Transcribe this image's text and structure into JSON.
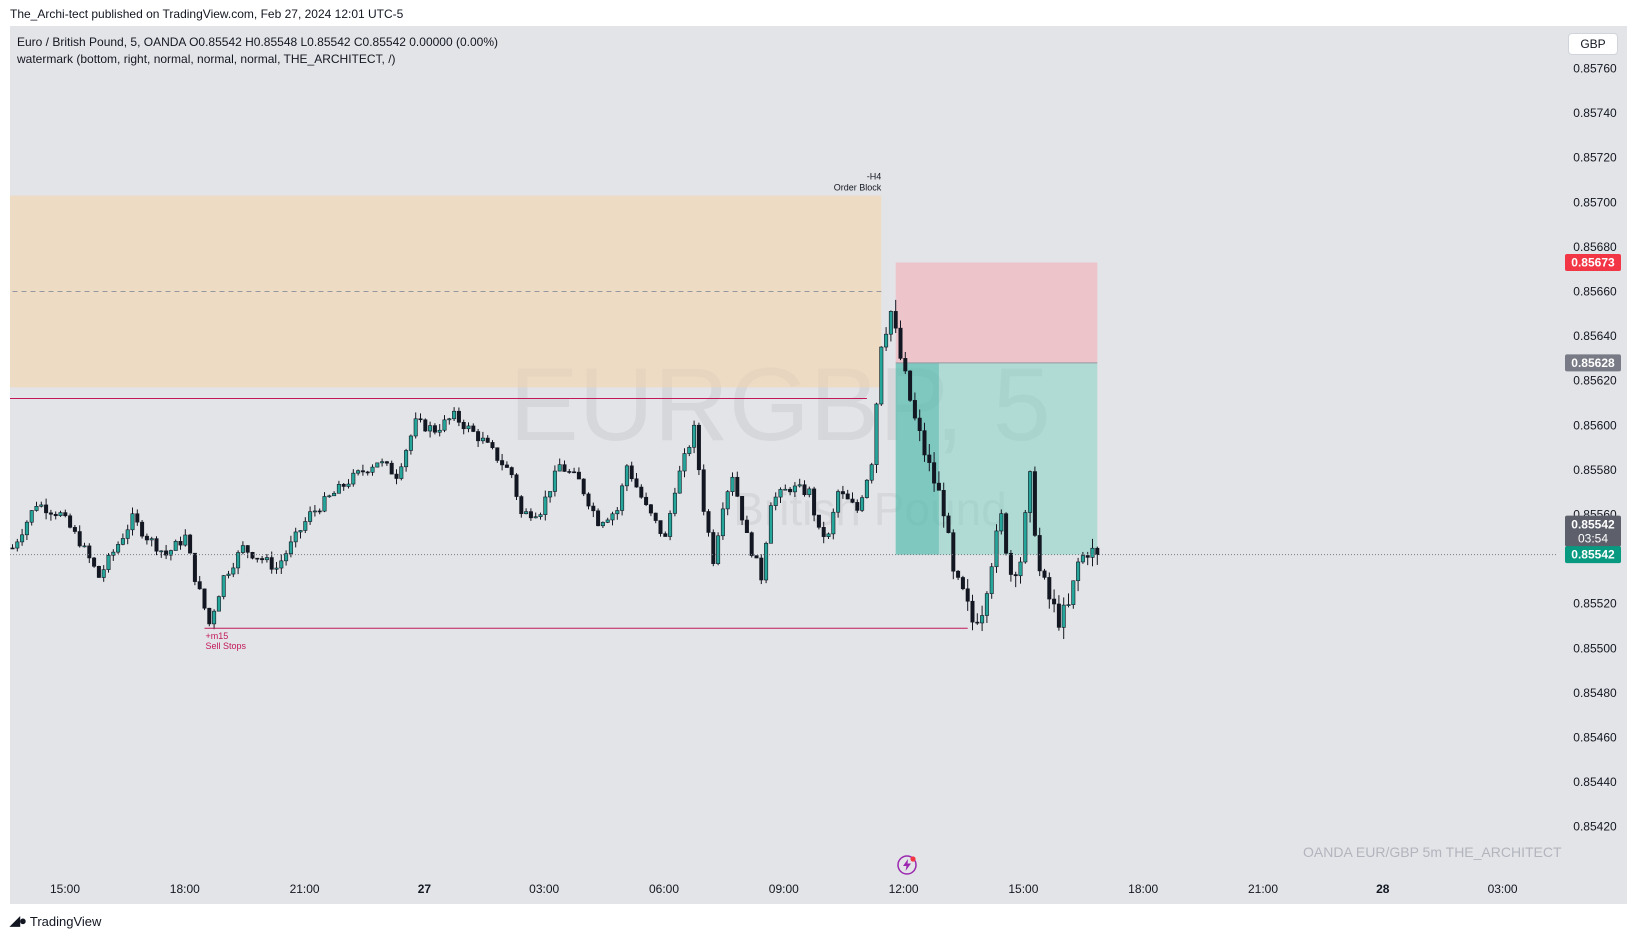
{
  "header": {
    "published": "The_Archi-tect published on TradingView.com, Feb 27, 2024 12:01 UTC-5"
  },
  "legend": {
    "line1": "Euro / British Pound, 5, OANDA  O0.85542  H0.85548  L0.85542  C0.85542  0.00000 (0.00%)",
    "line2": "watermark (bottom, right, normal, normal, normal, THE_ARCHITECT, /)"
  },
  "currency_button": "GBP",
  "bg_watermark": {
    "symbol": "EURGBP, 5",
    "name": "British Pound"
  },
  "corner_watermark": "OANDA   EUR/GBP 5m   THE_ARCHITECT",
  "footer": {
    "brand": "TradingView"
  },
  "colors": {
    "up": "#26a69a",
    "down": "#131722",
    "stop": "#f23645",
    "profit": "#089981",
    "zone": "#f5d3a8",
    "pane": "#e3e4e7"
  },
  "annotations": {
    "order_block": [
      "-H4",
      "Order Block"
    ],
    "sell_stops": [
      "+m15",
      "Sell Stops"
    ]
  },
  "price_badges": {
    "stop": "0.85673",
    "entry": "0.85628",
    "last": "0.85542",
    "countdown": "03:54",
    "current": "0.85542"
  },
  "chart_data": {
    "type": "candlestick",
    "symbol": "EUR/GBP",
    "timeframe": "5m",
    "yaxis": {
      "ticks": [
        "0.85760",
        "0.85740",
        "0.85720",
        "0.85700",
        "0.85680",
        "0.85660",
        "0.85640",
        "0.85620",
        "0.85600",
        "0.85580",
        "0.85560",
        "0.85540",
        "0.85520",
        "0.85500",
        "0.85480",
        "0.85460",
        "0.85440",
        "0.85420"
      ],
      "range": [
        0.85415,
        0.8577
      ]
    },
    "xaxis": {
      "ticks": [
        {
          "label": "15:00",
          "bold": false
        },
        {
          "label": "18:00",
          "bold": false
        },
        {
          "label": "21:00",
          "bold": false
        },
        {
          "label": "27",
          "bold": true
        },
        {
          "label": "03:00",
          "bold": false
        },
        {
          "label": "06:00",
          "bold": false
        },
        {
          "label": "09:00",
          "bold": false
        },
        {
          "label": "12:00",
          "bold": false
        },
        {
          "label": "15:00",
          "bold": false
        },
        {
          "label": "18:00",
          "bold": false
        },
        {
          "label": "21:00",
          "bold": false
        },
        {
          "label": "28",
          "bold": true
        },
        {
          "label": "03:00",
          "bold": false
        }
      ]
    },
    "order_block_zone": {
      "top": 0.85703,
      "bottom": 0.85617,
      "mid": 0.8566,
      "from_bar": 0,
      "to_bar": 181
    },
    "resistance_line": {
      "price": 0.85612,
      "from_bar": 0,
      "to_bar": 178
    },
    "sell_stops_line": {
      "price": 0.85509,
      "from_bar": 40,
      "to_bar": 199
    },
    "short_position": {
      "entry": 0.85628,
      "stop": 0.85673,
      "target": 0.85542,
      "from_bar": 184,
      "to_bar": 226
    },
    "last_price": 0.85542,
    "path": [
      [
        0,
        0.85545
      ],
      [
        5,
        0.85565
      ],
      [
        10,
        0.8556
      ],
      [
        14,
        0.85548
      ],
      [
        18,
        0.85532
      ],
      [
        25,
        0.85558
      ],
      [
        28,
        0.8555
      ],
      [
        32,
        0.85542
      ],
      [
        36,
        0.8555
      ],
      [
        38,
        0.85532
      ],
      [
        41,
        0.85511
      ],
      [
        44,
        0.85532
      ],
      [
        48,
        0.85545
      ],
      [
        52,
        0.8554
      ],
      [
        55,
        0.85536
      ],
      [
        62,
        0.8556
      ],
      [
        70,
        0.85575
      ],
      [
        76,
        0.85584
      ],
      [
        80,
        0.85578
      ],
      [
        84,
        0.85601
      ],
      [
        88,
        0.85598
      ],
      [
        92,
        0.85604
      ],
      [
        98,
        0.85593
      ],
      [
        104,
        0.85578
      ],
      [
        106,
        0.8556
      ],
      [
        110,
        0.85562
      ],
      [
        114,
        0.85582
      ],
      [
        118,
        0.85575
      ],
      [
        122,
        0.85557
      ],
      [
        126,
        0.85562
      ],
      [
        128,
        0.85582
      ],
      [
        132,
        0.85563
      ],
      [
        136,
        0.85549
      ],
      [
        138,
        0.85572
      ],
      [
        142,
        0.85598
      ],
      [
        144,
        0.85563
      ],
      [
        146,
        0.8554
      ],
      [
        148,
        0.85565
      ],
      [
        150,
        0.85578
      ],
      [
        153,
        0.8555
      ],
      [
        156,
        0.85532
      ],
      [
        158,
        0.85566
      ],
      [
        162,
        0.85572
      ],
      [
        166,
        0.8557
      ],
      [
        168,
        0.85552
      ],
      [
        170,
        0.8555
      ],
      [
        172,
        0.8557
      ],
      [
        176,
        0.85562
      ],
      [
        179,
        0.85584
      ],
      [
        181,
        0.85638
      ],
      [
        183,
        0.85651
      ],
      [
        185,
        0.8563
      ],
      [
        188,
        0.85602
      ],
      [
        191,
        0.85581
      ],
      [
        194,
        0.85563
      ],
      [
        196,
        0.85532
      ],
      [
        198,
        0.85524
      ],
      [
        200,
        0.85512
      ],
      [
        202,
        0.85518
      ],
      [
        204,
        0.8554
      ],
      [
        206,
        0.85558
      ],
      [
        208,
        0.85534
      ],
      [
        210,
        0.8554
      ],
      [
        212,
        0.85575
      ],
      [
        214,
        0.85534
      ],
      [
        216,
        0.85522
      ],
      [
        218,
        0.85513
      ],
      [
        220,
        0.85518
      ],
      [
        222,
        0.85538
      ],
      [
        224,
        0.85544
      ],
      [
        226,
        0.85542
      ]
    ]
  }
}
